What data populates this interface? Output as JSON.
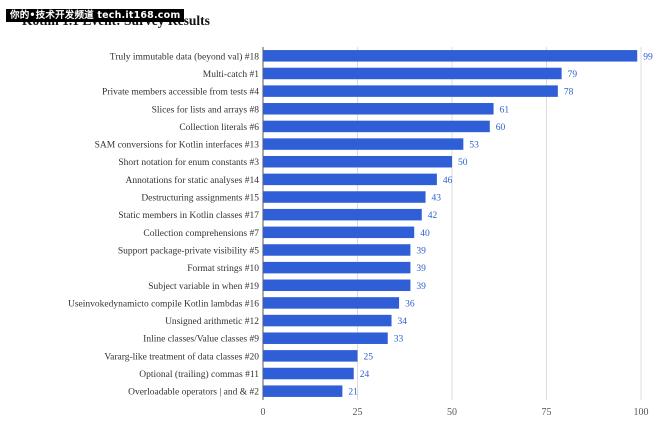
{
  "watermark": "你的•技术开发频道 tech.it168.com",
  "colors": {
    "bar": "#2f5ed6",
    "value_label": "#2c5fd0",
    "grid": "#d4d4d4",
    "axis": "#555555",
    "category_label": "#333333",
    "tick_label": "#555555"
  },
  "chart_data": {
    "type": "bar",
    "orientation": "horizontal",
    "title": "Kotlin 1.1 Event: Survey Results",
    "xlabel": "",
    "ylabel": "",
    "xlim": [
      0,
      100
    ],
    "xticks": [
      0,
      25,
      50,
      75,
      100
    ],
    "grid": true,
    "categories": [
      "Truly immutable data (beyond val) #18",
      "Multi-catch #1",
      "Private members accessible from tests #4",
      "Slices for lists and arrays #8",
      "Collection literals #6",
      "SAM conversions for Kotlin interfaces #13",
      "Short notation for enum constants #3",
      "Annotations for static analyses #14",
      "Destructuring assignments #15",
      "Static members in Kotlin classes #17",
      "Collection comprehensions #7",
      "Support package-private visibility #5",
      "Format strings #10",
      "Subject variable in when #19",
      "Useinvokedynamicto compile Kotlin lambdas #16",
      "Unsigned arithmetic #12",
      "Inline classes/Value classes #9",
      "Vararg-like treatment of data classes #20",
      "Optional (trailing) commas #11",
      "Overloadable operators | and & #2"
    ],
    "values": [
      99,
      79,
      78,
      61,
      60,
      53,
      50,
      46,
      43,
      42,
      40,
      39,
      39,
      39,
      36,
      34,
      33,
      25,
      24,
      21
    ]
  }
}
